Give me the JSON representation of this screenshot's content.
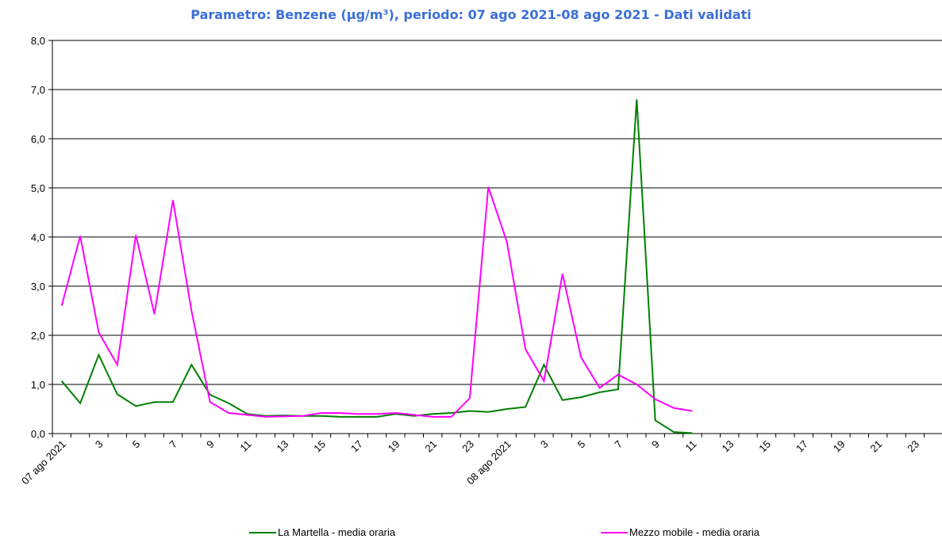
{
  "chart_data": {
    "type": "line",
    "title": "Parametro: Benzene (µg/m³), periodo: 07 ago 2021-08 ago 2021 - Dati validati",
    "xlabel": "",
    "ylabel": "",
    "ylim": [
      0,
      8
    ],
    "yticks": [
      "0,0",
      "1,0",
      "2,0",
      "3,0",
      "4,0",
      "5,0",
      "6,0",
      "7,0",
      "8,0"
    ],
    "xticklabels": [
      "07 ago 2021",
      "3",
      "5",
      "7",
      "9",
      "11",
      "13",
      "15",
      "17",
      "19",
      "21",
      "23",
      "08 ago 2021",
      "3",
      "5",
      "7",
      "9",
      "11",
      "13",
      "15",
      "17",
      "19",
      "21",
      "23"
    ],
    "n_points": 48,
    "grid": "horizontal",
    "legend_position": "bottom",
    "series": [
      {
        "name": "La Martella - media oraria",
        "color": "#008000",
        "values": [
          1.07,
          0.62,
          1.6,
          0.8,
          0.56,
          0.64,
          0.64,
          1.4,
          0.79,
          0.62,
          0.4,
          0.36,
          0.37,
          0.36,
          0.36,
          0.34,
          0.34,
          0.34,
          0.4,
          0.36,
          0.4,
          0.42,
          0.46,
          0.44,
          0.5,
          0.54,
          1.4,
          0.68,
          0.74,
          0.84,
          0.9,
          6.8,
          0.27,
          0.03,
          0.01,
          null,
          null,
          null,
          null,
          null,
          null,
          null,
          null,
          null,
          null,
          null,
          null,
          null
        ]
      },
      {
        "name": "Mezzo mobile - media oraria",
        "color": "#ff00ff",
        "values": [
          2.6,
          4.02,
          2.06,
          1.4,
          4.04,
          2.43,
          4.75,
          2.5,
          0.64,
          0.42,
          0.38,
          0.34,
          0.35,
          0.36,
          0.42,
          0.42,
          0.4,
          0.4,
          0.42,
          0.38,
          0.34,
          0.34,
          0.72,
          5.02,
          3.9,
          1.72,
          1.07,
          3.25,
          1.55,
          0.93,
          1.2,
          1.0,
          0.7,
          0.52,
          0.46,
          null,
          null,
          null,
          null,
          null,
          null,
          null,
          null,
          null,
          null,
          null,
          null,
          null
        ]
      }
    ]
  }
}
